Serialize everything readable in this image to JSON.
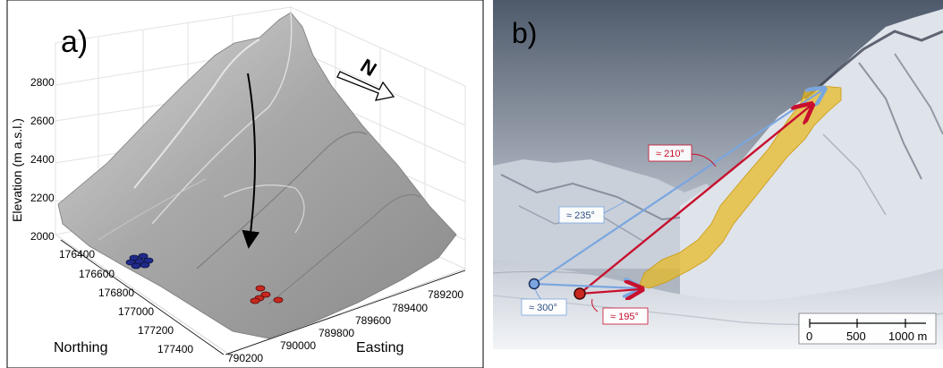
{
  "panel_a": {
    "label": "a)",
    "z_axis_label": "Elevation (m a.s.l.)",
    "z_ticks": [
      "2000",
      "2200",
      "2400",
      "2600",
      "2800"
    ],
    "northing_label": "Northing",
    "northing_ticks": [
      "176400",
      "176600",
      "176800",
      "177000",
      "177200",
      "177400"
    ],
    "easting_label": "Easting",
    "easting_ticks": [
      "789200",
      "789400",
      "789600",
      "789800",
      "790000",
      "790200"
    ],
    "north_symbol": "N",
    "colors": {
      "surface": "#9a9a9a",
      "blue_markers": "#1f2a8a",
      "red_markers": "#c8281e"
    }
  },
  "panel_b": {
    "label": "b)",
    "angles": {
      "red_main": "≈ 210°",
      "blue_main": "≈ 235°",
      "blue_short": "≈ 300°",
      "red_short": "≈ 195°"
    },
    "scale_bar": {
      "labels": [
        "0",
        "500",
        "1000 m"
      ]
    },
    "colors": {
      "blue_arrow": "#7aa6e0",
      "red_arrow": "#c8102e",
      "deposit": "#e8b820"
    }
  }
}
